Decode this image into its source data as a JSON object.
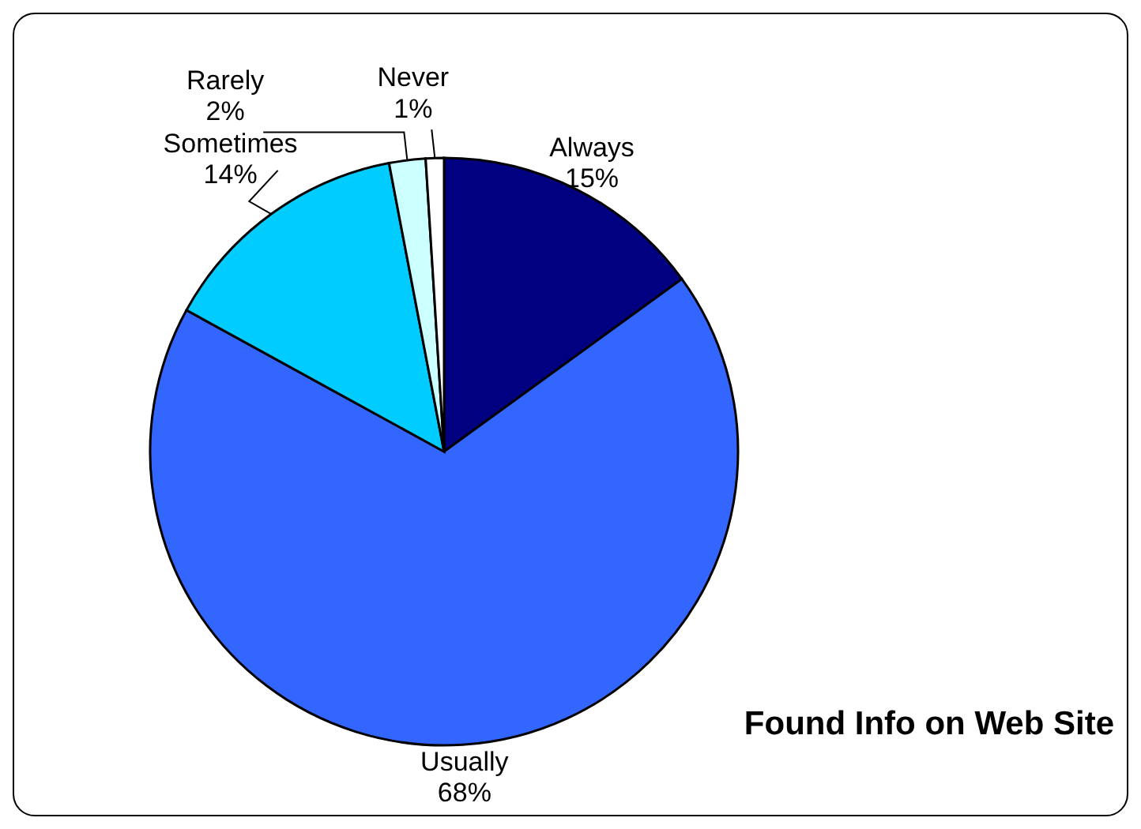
{
  "chart_data": {
    "type": "pie",
    "title": "Found Info on Web Site",
    "categories": [
      "Always",
      "Usually",
      "Sometimes",
      "Rarely",
      "Never"
    ],
    "values": [
      15,
      68,
      14,
      2,
      1
    ],
    "colors": [
      "#000080",
      "#3366ff",
      "#00ccff",
      "#ccffff",
      "#ffffff"
    ],
    "value_labels": [
      "15%",
      "68%",
      "14%",
      "2%",
      "1%"
    ],
    "data_labels": true
  }
}
